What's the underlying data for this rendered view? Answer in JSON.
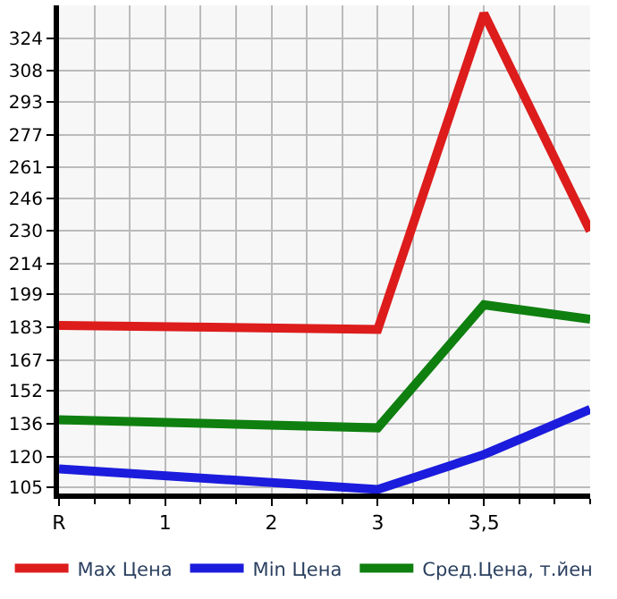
{
  "chart_data": {
    "type": "line",
    "categories": [
      "R",
      "1",
      "2",
      "3",
      "3,5",
      null
    ],
    "series": [
      {
        "name": "Max Цена",
        "color": "#dd1c1c",
        "values": [
          184,
          null,
          null,
          182,
          336,
          230
        ]
      },
      {
        "name": "Min Цена",
        "color": "#1c1cdd",
        "values": [
          114,
          null,
          null,
          104,
          121,
          143
        ]
      },
      {
        "name": "Сред.Цена, т.йен",
        "color": "#0f7f0f",
        "values": [
          138,
          null,
          null,
          134,
          194,
          187
        ]
      }
    ],
    "ylim": [
      102,
      340
    ],
    "yticks": [
      105,
      120,
      136,
      152,
      167,
      183,
      199,
      214,
      230,
      246,
      261,
      277,
      293,
      308,
      324
    ],
    "grid": true,
    "legend": "bottom",
    "marker": "none",
    "line_style": "solid"
  }
}
